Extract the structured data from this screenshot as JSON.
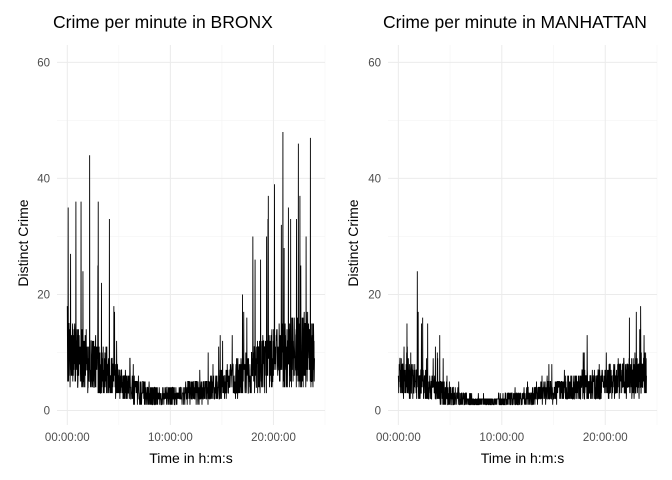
{
  "chart_data": [
    {
      "type": "line",
      "title": "Crime per minute in BRONX",
      "xlabel": "Time in h:m:s",
      "ylabel": "Distinct Crime",
      "x_ticks": [
        "00:00:00",
        "10:00:00",
        "20:00:00"
      ],
      "x_tick_values_minutes": [
        0,
        600,
        1200
      ],
      "xlim_minutes": [
        -60,
        1500
      ],
      "y_ticks": [
        "0",
        "20",
        "40",
        "60"
      ],
      "y_tick_values": [
        0,
        20,
        40,
        60
      ],
      "ylim": [
        -2.5,
        63
      ],
      "grid": true,
      "series": [
        {
          "color": "#000000",
          "profile_minutes": [
            0,
            60,
            120,
            180,
            240,
            300,
            360,
            420,
            480,
            540,
            600,
            660,
            720,
            780,
            840,
            900,
            960,
            1020,
            1080,
            1140,
            1200,
            1260,
            1320,
            1380,
            1439
          ],
          "profile_typical": [
            9,
            9,
            8,
            7.5,
            6,
            4.5,
            3.5,
            3,
            2.5,
            2.5,
            2.5,
            2.5,
            3,
            3,
            3.5,
            4,
            5,
            5.5,
            6.5,
            7.5,
            8.5,
            9,
            9.5,
            10,
            10
          ],
          "profile_max": [
            35,
            36,
            44,
            36,
            33,
            16,
            13,
            9,
            6,
            5,
            5,
            6,
            9,
            11,
            13,
            17,
            22,
            26,
            30,
            36,
            48,
            41,
            45,
            47,
            30
          ],
          "min": 1,
          "peaks": [
            {
              "minute": 5,
              "value": 35
            },
            {
              "minute": 50,
              "value": 36
            },
            {
              "minute": 80,
              "value": 36
            },
            {
              "minute": 130,
              "value": 44
            },
            {
              "minute": 180,
              "value": 36
            },
            {
              "minute": 245,
              "value": 33
            },
            {
              "minute": 1080,
              "value": 30
            },
            {
              "minute": 1170,
              "value": 37
            },
            {
              "minute": 1255,
              "value": 48
            },
            {
              "minute": 1300,
              "value": 33
            },
            {
              "minute": 1345,
              "value": 46
            },
            {
              "minute": 1415,
              "value": 47
            }
          ]
        }
      ]
    },
    {
      "type": "line",
      "title": "Crime per minute in MANHATTAN",
      "xlabel": "Time in h:m:s",
      "ylabel": "Distinct Crime",
      "x_ticks": [
        "00:00:00",
        "10:00:00",
        "20:00:00"
      ],
      "x_tick_values_minutes": [
        0,
        600,
        1200
      ],
      "xlim_minutes": [
        -60,
        1500
      ],
      "y_ticks": [
        "0",
        "20",
        "40",
        "60"
      ],
      "y_tick_values": [
        0,
        20,
        40,
        60
      ],
      "ylim": [
        -2.5,
        63
      ],
      "grid": true,
      "series": [
        {
          "color": "#000000",
          "profile_minutes": [
            0,
            60,
            120,
            180,
            240,
            300,
            360,
            420,
            480,
            540,
            600,
            660,
            720,
            780,
            840,
            900,
            960,
            1020,
            1080,
            1140,
            1200,
            1260,
            1320,
            1380,
            1439
          ],
          "profile_typical": [
            5.5,
            5,
            4.5,
            4,
            3,
            2.5,
            2,
            1.5,
            1.5,
            1.5,
            1.5,
            2,
            2,
            2.5,
            3,
            3,
            3.5,
            3.5,
            4,
            4,
            4.5,
            5,
            5,
            5.5,
            6
          ],
          "profile_max": [
            11,
            15,
            24,
            15,
            13,
            7,
            5,
            4,
            3,
            3,
            3,
            4,
            6,
            7,
            9,
            10,
            11,
            12,
            13,
            13,
            14,
            14,
            16,
            17,
            18
          ],
          "min": 1,
          "peaks": [
            {
              "minute": 110,
              "value": 24
            },
            {
              "minute": 50,
              "value": 15
            },
            {
              "minute": 170,
              "value": 15
            },
            {
              "minute": 240,
              "value": 13
            },
            {
              "minute": 1095,
              "value": 13
            },
            {
              "minute": 1340,
              "value": 16
            },
            {
              "minute": 1405,
              "value": 18
            },
            {
              "minute": 1380,
              "value": 17
            }
          ]
        }
      ]
    }
  ]
}
